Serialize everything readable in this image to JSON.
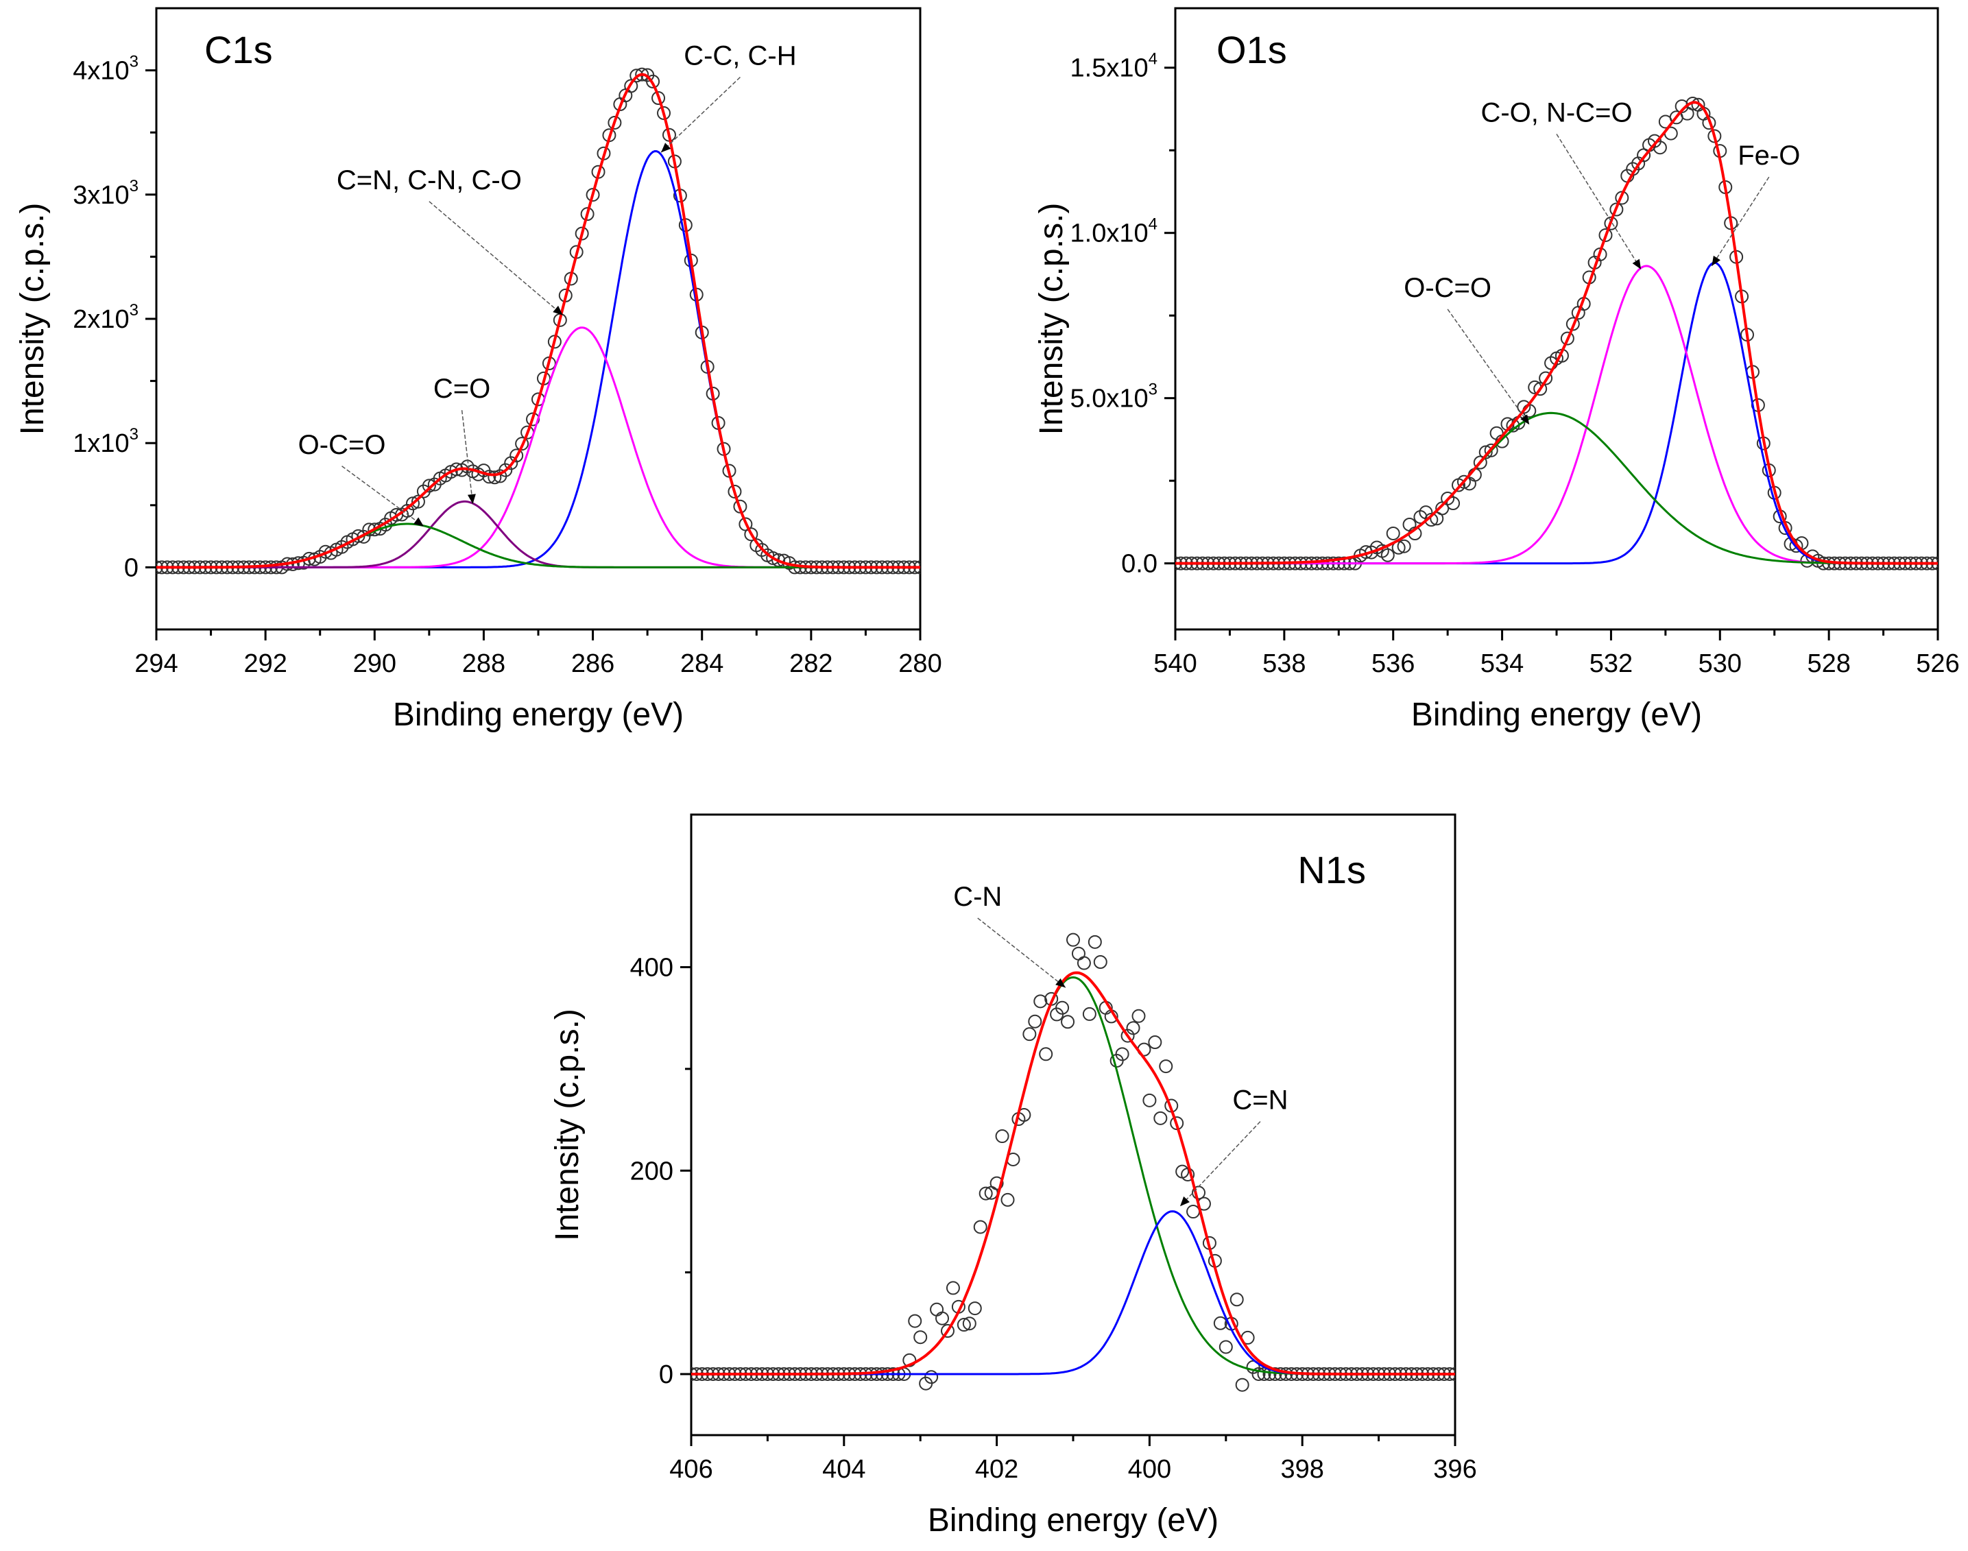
{
  "chart_data": [
    {
      "type": "line",
      "title": "C1s",
      "xlabel": "Binding energy (eV)",
      "ylabel": "Intensity (c.p.s.)",
      "xlim": [
        294,
        280
      ],
      "ylim": [
        -500,
        4500
      ],
      "x_ticks": [
        294,
        292,
        290,
        288,
        286,
        284,
        282,
        280
      ],
      "y_ticks": [
        {
          "value": 0,
          "label": "0"
        },
        {
          "value": 1000,
          "label": "1x10",
          "exp": "3"
        },
        {
          "value": 2000,
          "label": "2x10",
          "exp": "3"
        },
        {
          "value": 3000,
          "label": "3x10",
          "exp": "3"
        },
        {
          "value": 4000,
          "label": "4x10",
          "exp": "3"
        }
      ],
      "peaks": [
        {
          "name": "C-C, C-H",
          "color": "#0000ff",
          "center": 284.85,
          "amplitude": 3350,
          "sigma": 0.78
        },
        {
          "name": "C=N, C-N, C-O",
          "color": "#ff00ff",
          "center": 286.2,
          "amplitude": 1930,
          "sigma": 0.82
        },
        {
          "name": "C=O",
          "color": "#800080",
          "center": 288.35,
          "amplitude": 530,
          "sigma": 0.62
        },
        {
          "name": "O-C=O",
          "color": "#008000",
          "center": 289.4,
          "amplitude": 350,
          "sigma": 1.0
        }
      ],
      "fit": {
        "name": "Envelope",
        "color": "#ff0000"
      },
      "baseline": 0,
      "data_range": [
        291.6,
        282.4
      ],
      "noise_amplitude": 25,
      "annotations": [
        {
          "text": "C-C, C-H",
          "arrow_to": [
            284.75,
            3340
          ],
          "label_at": [
            283.3,
            4000
          ]
        },
        {
          "text": "C=N, C-N, C-O",
          "arrow_to": [
            286.55,
            2030
          ],
          "label_at": [
            289.0,
            3000
          ]
        },
        {
          "text": "C=O",
          "arrow_to": [
            288.2,
            510
          ],
          "label_at": [
            288.4,
            1320
          ]
        },
        {
          "text": "O-C=O",
          "arrow_to": [
            289.1,
            330
          ],
          "label_at": [
            290.6,
            870
          ]
        }
      ]
    },
    {
      "type": "line",
      "title": "O1s",
      "xlabel": "Binding energy (eV)",
      "ylabel": "Intensity (c.p.s.)",
      "xlim": [
        540,
        526
      ],
      "ylim": [
        -2000,
        16800
      ],
      "x_ticks": [
        540,
        538,
        536,
        534,
        532,
        530,
        528,
        526
      ],
      "y_ticks": [
        {
          "value": 0,
          "label": "0.0"
        },
        {
          "value": 5000,
          "label": "5.0x10",
          "exp": "3"
        },
        {
          "value": 10000,
          "label": "1.0x10",
          "exp": "4"
        },
        {
          "value": 15000,
          "label": "1.5x10",
          "exp": "4"
        }
      ],
      "peaks": [
        {
          "name": "Fe-O",
          "color": "#0000ff",
          "center": 530.1,
          "amplitude": 9100,
          "sigma": 0.62
        },
        {
          "name": "C-O, N-C=O",
          "color": "#ff00ff",
          "center": 531.35,
          "amplitude": 9000,
          "sigma": 0.88
        },
        {
          "name": "O-C=O",
          "color": "#008000",
          "center": 533.1,
          "amplitude": 4550,
          "sigma": 1.45
        }
      ],
      "fit": {
        "name": "Envelope",
        "color": "#ff0000"
      },
      "baseline": 0,
      "data_range": [
        536.6,
        528.2
      ],
      "noise_amplitude": 300,
      "annotations": [
        {
          "text": "Fe-O",
          "arrow_to": [
            530.15,
            9000
          ],
          "label_at": [
            529.1,
            11900
          ]
        },
        {
          "text": "C-O, N-C=O",
          "arrow_to": [
            531.45,
            8900
          ],
          "label_at": [
            533.0,
            13200
          ]
        },
        {
          "text": "O-C=O",
          "arrow_to": [
            533.5,
            4200
          ],
          "label_at": [
            535.0,
            7900
          ]
        }
      ]
    },
    {
      "type": "line",
      "title": "N1s",
      "xlabel": "Binding energy (eV)",
      "ylabel": "Intensity (c.p.s.)",
      "xlim": [
        406,
        396
      ],
      "ylim": [
        -60,
        550
      ],
      "x_ticks": [
        406,
        404,
        402,
        400,
        398,
        396
      ],
      "y_ticks": [
        {
          "value": 0,
          "label": "0"
        },
        {
          "value": 200,
          "label": "200"
        },
        {
          "value": 400,
          "label": "400"
        }
      ],
      "peaks": [
        {
          "name": "C-N",
          "color": "#008000",
          "center": 401.0,
          "amplitude": 390,
          "sigma": 0.78
        },
        {
          "name": "C=N",
          "color": "#0000ff",
          "center": 399.7,
          "amplitude": 160,
          "sigma": 0.48
        }
      ],
      "fit": {
        "name": "Envelope",
        "color": "#ff0000"
      },
      "baseline": 0,
      "data_range": [
        403.2,
        398.6
      ],
      "noise_amplitude": 45,
      "annotations": [
        {
          "text": "C-N",
          "arrow_to": [
            401.1,
            380
          ],
          "label_at": [
            402.25,
            455
          ]
        },
        {
          "text": "C=N",
          "arrow_to": [
            399.6,
            165
          ],
          "label_at": [
            398.55,
            255
          ]
        }
      ]
    }
  ]
}
